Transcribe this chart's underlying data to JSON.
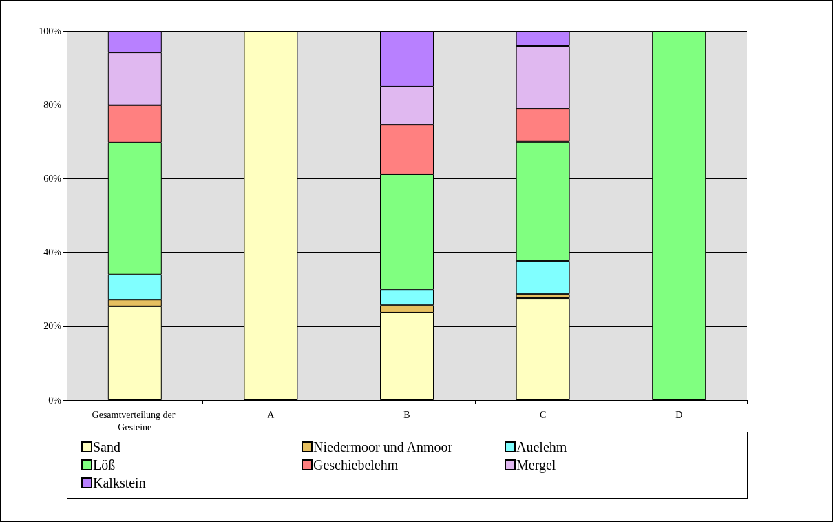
{
  "chart_data": {
    "type": "bar",
    "stacked": true,
    "categories": [
      "Gesamtverteilung der Gesteine",
      "A",
      "B",
      "C",
      "D"
    ],
    "series": [
      {
        "name": "Sand",
        "color": "#ffffc0",
        "values": [
          25.4,
          100,
          23.7,
          27.6,
          null
        ]
      },
      {
        "name": "Niedermoor und Anmoor",
        "color": "#e6c060",
        "values": [
          1.8,
          null,
          2.0,
          1.1,
          null
        ]
      },
      {
        "name": "Auelehm",
        "color": "#80ffff",
        "values": [
          6.8,
          null,
          4.3,
          9.0,
          null
        ]
      },
      {
        "name": "Löß",
        "color": "#80ff80",
        "values": [
          35.8,
          null,
          31.2,
          32.3,
          100
        ]
      },
      {
        "name": "Geschiebelehm",
        "color": "#ff8080",
        "values": [
          10.1,
          null,
          13.4,
          8.9,
          null
        ]
      },
      {
        "name": "Mergel",
        "color": "#e0b8f0",
        "values": [
          14.3,
          null,
          10.3,
          17.0,
          null
        ]
      },
      {
        "name": "Kalkstein",
        "color": "#b880ff",
        "values": [
          5.8,
          null,
          15.1,
          4.1,
          null
        ]
      }
    ],
    "ylim": [
      0,
      100
    ],
    "yticks": [
      {
        "value": 0,
        "label": "0%"
      },
      {
        "value": 20,
        "label": "20%"
      },
      {
        "value": 40,
        "label": "40%"
      },
      {
        "value": 60,
        "label": "60%"
      },
      {
        "value": 80,
        "label": "80%"
      },
      {
        "value": 100,
        "label": "100%"
      }
    ],
    "grid": "y",
    "legend": "bottom"
  }
}
